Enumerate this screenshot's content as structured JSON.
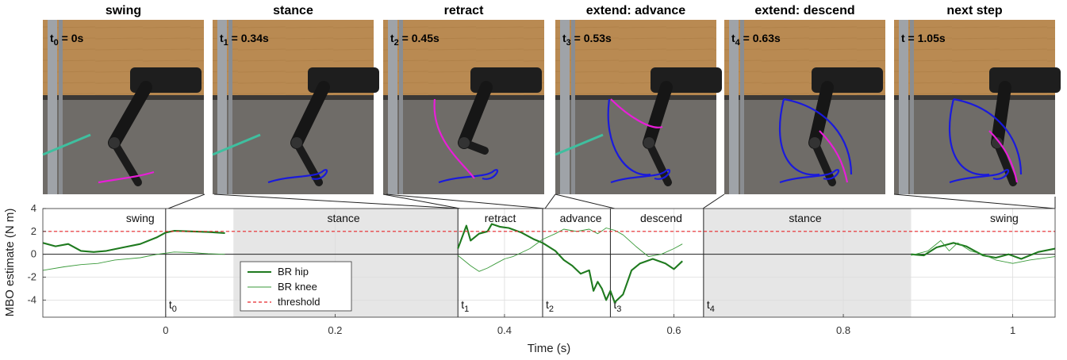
{
  "frames": [
    {
      "title": "swing",
      "time_label": "t",
      "time_sub": "0",
      "time_value": " = 0s"
    },
    {
      "title": "stance",
      "time_label": "t",
      "time_sub": "1",
      "time_value": " = 0.34s"
    },
    {
      "title": "retract",
      "time_label": "t",
      "time_sub": "2",
      "time_value": " = 0.45s"
    },
    {
      "title": "extend: advance",
      "time_label": "t",
      "time_sub": "3",
      "time_value": " = 0.53s"
    },
    {
      "title": "extend: descend",
      "time_label": "t",
      "time_sub": "4",
      "time_value": " = 0.63s"
    },
    {
      "title": "next step",
      "time_label": "t",
      "time_sub": "",
      "time_value": " = 1.05s"
    }
  ],
  "colors": {
    "hip": "#1f7a1f",
    "knee": "#3a9a3a",
    "threshold": "#e8262a",
    "stance_shade": "#e6e6e6",
    "trace_blue": "#1a1adc",
    "trace_magenta": "#e81ed8",
    "tether": "#3fbf9f"
  },
  "chart_data": {
    "type": "line",
    "xlabel": "Time (s)",
    "ylabel": "MBO estimate (N m)",
    "xlim": [
      -0.145,
      1.05
    ],
    "ylim": [
      -5.5,
      4
    ],
    "xticks": [
      0,
      0.2,
      0.4,
      0.6,
      0.8,
      1
    ],
    "xtick_labels": [
      "0",
      "0.2",
      "0.4",
      "0.6",
      "0.8",
      "1"
    ],
    "yticks": [
      -4,
      -2,
      0,
      2,
      4
    ],
    "ytick_labels": [
      "-4",
      "-2",
      "0",
      "2",
      "4"
    ],
    "grid": true,
    "legend_position": "lower-left of stance region",
    "shaded_regions": [
      {
        "label": "stance",
        "x0": 0.08,
        "x1": 0.345
      },
      {
        "label": "stance",
        "x0": 0.635,
        "x1": 0.88
      }
    ],
    "phase_labels": [
      {
        "text": "swing",
        "x": -0.03
      },
      {
        "text": "stance",
        "x": 0.21
      },
      {
        "text": "retract",
        "x": 0.395
      },
      {
        "text": "advance",
        "x": 0.49
      },
      {
        "text": "descend",
        "x": 0.585
      },
      {
        "text": "stance",
        "x": 0.755
      },
      {
        "text": "swing",
        "x": 0.99
      }
    ],
    "time_markers": [
      {
        "label": "t",
        "sub": "0",
        "x": 0.0
      },
      {
        "label": "t",
        "sub": "1",
        "x": 0.345
      },
      {
        "label": "t",
        "sub": "2",
        "x": 0.445
      },
      {
        "label": "t",
        "sub": "3",
        "x": 0.525
      },
      {
        "label": "t",
        "sub": "4",
        "x": 0.635
      }
    ],
    "threshold_value": 2,
    "series": [
      {
        "name": "BR hip",
        "segments": [
          [
            [
              -0.145,
              1.0
            ],
            [
              -0.13,
              0.7
            ],
            [
              -0.115,
              0.9
            ],
            [
              -0.1,
              0.3
            ],
            [
              -0.085,
              0.2
            ],
            [
              -0.07,
              0.3
            ],
            [
              -0.05,
              0.6
            ],
            [
              -0.03,
              0.9
            ],
            [
              -0.01,
              1.5
            ],
            [
              0.0,
              1.9
            ],
            [
              0.01,
              2.05
            ],
            [
              0.03,
              2.0
            ],
            [
              0.05,
              1.95
            ],
            [
              0.07,
              1.85
            ]
          ],
          [
            [
              0.345,
              0.5
            ],
            [
              0.355,
              2.5
            ],
            [
              0.36,
              1.2
            ],
            [
              0.37,
              1.8
            ],
            [
              0.38,
              2.0
            ],
            [
              0.385,
              2.65
            ],
            [
              0.395,
              2.4
            ],
            [
              0.405,
              2.3
            ],
            [
              0.42,
              1.9
            ],
            [
              0.435,
              1.3
            ],
            [
              0.445,
              1.0
            ],
            [
              0.46,
              0.3
            ],
            [
              0.47,
              -0.5
            ],
            [
              0.48,
              -1.0
            ],
            [
              0.49,
              -1.7
            ],
            [
              0.5,
              -1.4
            ],
            [
              0.505,
              -3.2
            ],
            [
              0.51,
              -2.4
            ],
            [
              0.515,
              -3.0
            ],
            [
              0.52,
              -4.0
            ],
            [
              0.525,
              -3.2
            ],
            [
              0.53,
              -4.2
            ],
            [
              0.54,
              -3.5
            ],
            [
              0.55,
              -1.4
            ],
            [
              0.56,
              -0.8
            ],
            [
              0.575,
              -0.4
            ],
            [
              0.59,
              -0.8
            ],
            [
              0.6,
              -1.3
            ],
            [
              0.61,
              -0.6
            ]
          ],
          [
            [
              0.88,
              0.0
            ],
            [
              0.895,
              -0.1
            ],
            [
              0.91,
              0.6
            ],
            [
              0.93,
              1.0
            ],
            [
              0.945,
              0.7
            ],
            [
              0.955,
              0.3
            ],
            [
              0.965,
              -0.1
            ],
            [
              0.98,
              -0.3
            ],
            [
              0.995,
              0.0
            ],
            [
              1.01,
              -0.4
            ],
            [
              1.03,
              0.2
            ],
            [
              1.05,
              0.5
            ]
          ]
        ]
      },
      {
        "name": "BR knee",
        "segments": [
          [
            [
              -0.145,
              -1.4
            ],
            [
              -0.12,
              -1.1
            ],
            [
              -0.1,
              -0.9
            ],
            [
              -0.08,
              -0.8
            ],
            [
              -0.06,
              -0.5
            ],
            [
              -0.03,
              -0.3
            ],
            [
              -0.01,
              0.0
            ],
            [
              0.01,
              0.2
            ],
            [
              0.03,
              0.15
            ],
            [
              0.05,
              0.05
            ],
            [
              0.07,
              0.0
            ]
          ],
          [
            [
              0.345,
              -0.1
            ],
            [
              0.36,
              -1.0
            ],
            [
              0.37,
              -1.5
            ],
            [
              0.38,
              -1.2
            ],
            [
              0.39,
              -0.8
            ],
            [
              0.4,
              -0.4
            ],
            [
              0.41,
              -0.2
            ],
            [
              0.43,
              0.5
            ],
            [
              0.445,
              1.3
            ],
            [
              0.46,
              1.8
            ],
            [
              0.47,
              2.2
            ],
            [
              0.485,
              2.0
            ],
            [
              0.5,
              2.2
            ],
            [
              0.51,
              1.8
            ],
            [
              0.52,
              2.3
            ],
            [
              0.53,
              2.1
            ],
            [
              0.54,
              1.7
            ],
            [
              0.555,
              0.7
            ],
            [
              0.57,
              -0.2
            ],
            [
              0.585,
              0.0
            ],
            [
              0.6,
              0.5
            ],
            [
              0.61,
              0.9
            ]
          ],
          [
            [
              0.88,
              -0.1
            ],
            [
              0.9,
              0.3
            ],
            [
              0.915,
              1.2
            ],
            [
              0.925,
              0.3
            ],
            [
              0.935,
              1.0
            ],
            [
              0.95,
              0.3
            ],
            [
              0.965,
              0.0
            ],
            [
              0.98,
              -0.5
            ],
            [
              1.0,
              -0.8
            ],
            [
              1.02,
              -0.5
            ],
            [
              1.05,
              -0.2
            ]
          ]
        ]
      },
      {
        "name": "threshold",
        "segments": [
          [
            [
              -0.145,
              2
            ],
            [
              1.05,
              2
            ]
          ]
        ]
      }
    ]
  }
}
